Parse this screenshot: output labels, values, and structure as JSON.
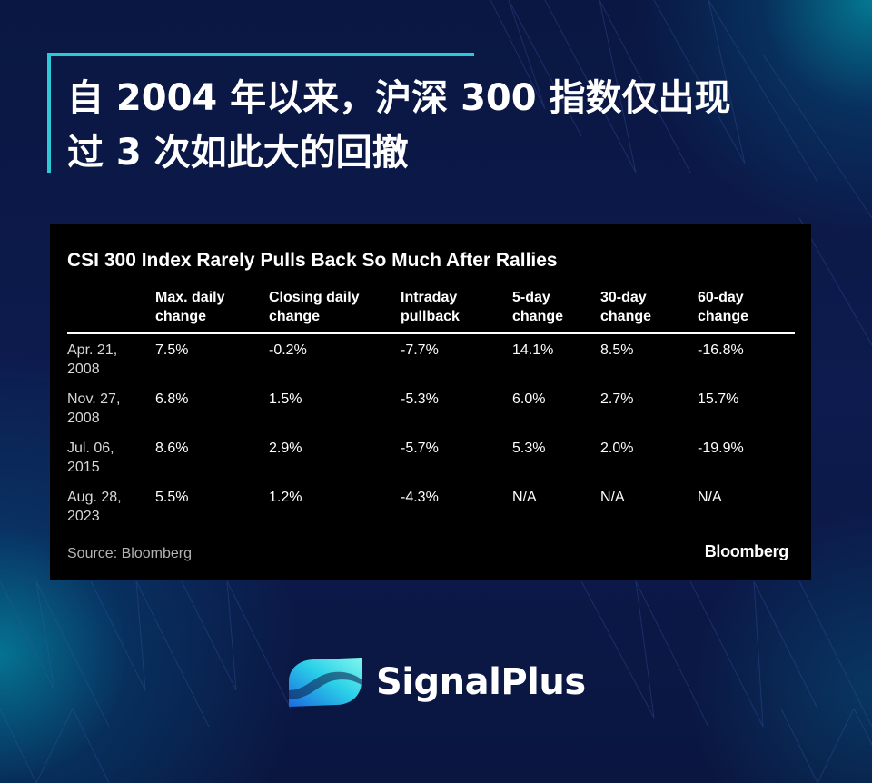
{
  "headline": {
    "line1": "自 2004 年以来，沪深 300 指数仅出现",
    "line2": "过 3 次如此大的回撤"
  },
  "table_card": {
    "title": "CSI 300 Index Rarely Pulls Back So Much After Rallies",
    "columns": [
      {
        "line1": "",
        "line2": ""
      },
      {
        "line1": "Max. daily",
        "line2": "change"
      },
      {
        "line1": "Closing daily",
        "line2": "change"
      },
      {
        "line1": "Intraday",
        "line2": "pullback"
      },
      {
        "line1": "5-day",
        "line2": "change"
      },
      {
        "line1": "30-day",
        "line2": "change"
      },
      {
        "line1": "60-day",
        "line2": "change"
      }
    ],
    "rows": [
      {
        "date1": "Apr. 21,",
        "date2": "2008",
        "max_daily": "7.5%",
        "closing_daily": "-0.2%",
        "intraday": "-7.7%",
        "d5": "14.1%",
        "d30": "8.5%",
        "d60": "-16.8%"
      },
      {
        "date1": "Nov. 27,",
        "date2": "2008",
        "max_daily": "6.8%",
        "closing_daily": "1.5%",
        "intraday": "-5.3%",
        "d5": "6.0%",
        "d30": "2.7%",
        "d60": "15.7%"
      },
      {
        "date1": "Jul. 06,",
        "date2": "2015",
        "max_daily": "8.6%",
        "closing_daily": "2.9%",
        "intraday": "-5.7%",
        "d5": "5.3%",
        "d30": "2.0%",
        "d60": "-19.9%"
      },
      {
        "date1": "Aug. 28,",
        "date2": "2023",
        "max_daily": "5.5%",
        "closing_daily": "1.2%",
        "intraday": "-4.3%",
        "d5": "N/A",
        "d30": "N/A",
        "d60": "N/A"
      }
    ],
    "source": "Source: Bloomberg",
    "brand": "Bloomberg"
  },
  "footer": {
    "logo_icon": "signalplus-wave-icon",
    "logo_text": "SignalPlus"
  },
  "colors": {
    "background": "#0b1846",
    "accent": "#2ec9d6",
    "card": "#000000"
  }
}
